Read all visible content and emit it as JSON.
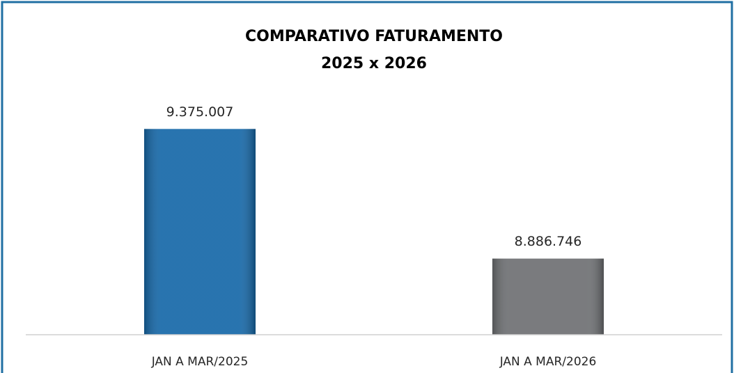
{
  "chart_data": {
    "type": "bar",
    "title": [
      "COMPARATIVO FATURAMENTO",
      "2025 x 2026"
    ],
    "categories": [
      "JAN A MAR/2025",
      "JAN A MAR/2026"
    ],
    "values": [
      9375007,
      8886746
    ],
    "value_labels": [
      "9.375.007",
      "8.886.746"
    ],
    "colors": [
      "#1668a8",
      "#6e7073"
    ],
    "ylim": [
      8600000,
      9520000
    ]
  }
}
